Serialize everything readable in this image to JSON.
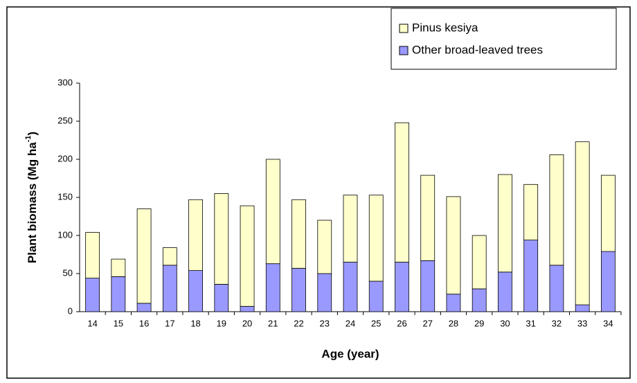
{
  "chart_data": {
    "type": "stacked_bar",
    "x_label": "Age (year)",
    "y_label": {
      "text": "Plant biomass (Mg ha",
      "superscript": "-1",
      "suffix": ")"
    },
    "categories": [
      "14",
      "15",
      "16",
      "17",
      "18",
      "19",
      "20",
      "21",
      "22",
      "23",
      "24",
      "25",
      "26",
      "27",
      "28",
      "29",
      "30",
      "31",
      "32",
      "33",
      "34"
    ],
    "series": [
      {
        "name": "Other broad-leaved trees",
        "color": "#9999ff",
        "values": [
          44,
          46,
          11,
          61,
          54,
          36,
          7,
          63,
          57,
          50,
          65,
          40,
          65,
          67,
          23,
          30,
          52,
          94,
          61,
          9,
          79
        ]
      },
      {
        "name": "Pinus kesiya",
        "color": "#ffffcc",
        "values": [
          60,
          23,
          124,
          23,
          93,
          119,
          132,
          137,
          90,
          70,
          88,
          113,
          183,
          112,
          128,
          70,
          128,
          73,
          145,
          214,
          100
        ]
      }
    ],
    "ylim": [
      0,
      300
    ],
    "yticks": [
      0,
      50,
      100,
      150,
      200,
      250,
      300
    ],
    "legend": "top-right",
    "grid": false
  }
}
